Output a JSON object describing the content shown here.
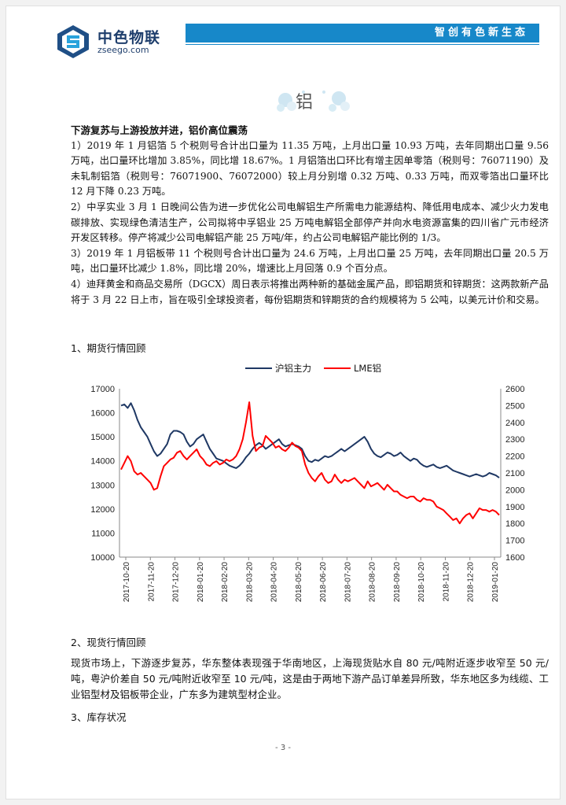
{
  "header": {
    "logo_cn": "中色物联",
    "logo_en": "zseego.com",
    "slogan": "智创有色新生态"
  },
  "section": {
    "title": "铝"
  },
  "headline": "下游复苏与上游投放并进，铝价高位震荡",
  "paragraphs": [
    "1）2019 年 1 月铝箔 5 个税则号合计出口量为 11.35 万吨，上月出口量 10.93 万吨，去年同期出口量 9.56 万吨，出口量环比增加 3.85%，同比增 18.67%。1 月铝箔出口环比有增主因单零箔（税则号：76071190）及未轧制铝箔（税则号：76071900、76072000）较上月分别增 0.32 万吨、0.33 万吨，而双零箔出口量环比 12 月下降 0.23 万吨。",
    "2）中孚实业 3 月 1 日晚间公告为进一步优化公司电解铝生产所需电力能源结构、降低用电成本、减少火力发电碳排放、实现绿色清洁生产，公司拟将中孚铝业 25 万吨电解铝全部停产并向水电资源富集的四川省广元市经济开发区转移。停产将减少公司电解铝产能 25 万吨/年，约占公司电解铝产能比例的 1/3。",
    "3）2019 年 1 月铝板带 11 个税则号合计出口量为 24.6 万吨，上月出口量 25 万吨，去年同期出口量 20.5 万吨，出口量环比减少 1.8%，同比增 20%，增速比上月回落 0.9 个百分点。",
    "4）迪拜黄金和商品交易所（DGCX）周日表示将推出两种新的基础金属产品，即铝期货和锌期货：这两款新产品将于 3 月 22 日上市，旨在吸引全球投资者，每份铝期货和锌期货的合约规模将为 5 公吨，以美元计价和交易。"
  ],
  "sections": {
    "futures": "1、期货行情回顾",
    "spot": "2、现货行情回顾",
    "inventory": "3、库存状况"
  },
  "spot_text": "现货市场上，下游逐步复苏，华东整体表现强于华南地区，上海现货贴水自 80 元/吨附近逐步收窄至 50 元/吨，粤沪价差自 50 元/吨附近收窄至 10 元/吨，这是由于两地下游产品订单差异所致，华东地区多为线缆、工业铝型材及铝板带企业，广东多为建筑型材企业。",
  "page_number": "- 3 -",
  "colors": {
    "banner": "#1788c9",
    "shfe": "#1f3864",
    "lme": "#ff0000"
  },
  "chart_data": {
    "type": "line",
    "series": [
      {
        "name": "沪铝主力",
        "axis": "left",
        "color": "#1f3864",
        "values": [
          16300,
          16350,
          16200,
          16400,
          16100,
          15700,
          15400,
          15200,
          15000,
          14700,
          14400,
          14200,
          14300,
          14500,
          14700,
          15100,
          15250,
          15250,
          15200,
          15100,
          14800,
          14600,
          14700,
          14900,
          15000,
          15100,
          14800,
          14500,
          14300,
          14100,
          14050,
          14000,
          13900,
          13800,
          13750,
          13700,
          13800,
          13950,
          14150,
          14300,
          14500,
          14650,
          14750,
          14650,
          14500,
          14600,
          14700,
          14800,
          14900,
          14700,
          14600,
          14650,
          14700,
          14650,
          14600,
          14500,
          14200,
          14000,
          13950,
          14050,
          14000,
          14100,
          14200,
          14150,
          14200,
          14300,
          14400,
          14500,
          14400,
          14500,
          14600,
          14700,
          14800,
          14900,
          15000,
          14800,
          14500,
          14300,
          14200,
          14150,
          14250,
          14350,
          14300,
          14200,
          14250,
          14350,
          14200,
          14100,
          14000,
          14100,
          14050,
          13900,
          13800,
          13750,
          13800,
          13850,
          13750,
          13700,
          13750,
          13800,
          13700,
          13600,
          13550,
          13500,
          13450,
          13400,
          13350,
          13400,
          13450,
          13400,
          13350,
          13400,
          13500,
          13450,
          13400,
          13300
        ]
      },
      {
        "name": "LME铝",
        "axis": "right",
        "color": "#ff0000",
        "values": [
          2120,
          2160,
          2200,
          2170,
          2110,
          2090,
          2100,
          2080,
          2060,
          2040,
          2000,
          2010,
          2080,
          2140,
          2160,
          2180,
          2190,
          2220,
          2230,
          2200,
          2180,
          2200,
          2220,
          2240,
          2200,
          2180,
          2150,
          2140,
          2160,
          2170,
          2150,
          2160,
          2180,
          2170,
          2180,
          2200,
          2240,
          2300,
          2400,
          2520,
          2320,
          2230,
          2250,
          2260,
          2320,
          2300,
          2280,
          2250,
          2260,
          2240,
          2230,
          2250,
          2280,
          2260,
          2250,
          2230,
          2150,
          2100,
          2070,
          2050,
          2080,
          2100,
          2060,
          2040,
          2050,
          2090,
          2060,
          2040,
          2060,
          2050,
          2060,
          2070,
          2050,
          2030,
          2010,
          2050,
          2020,
          2030,
          2040,
          2020,
          2000,
          2030,
          2010,
          1990,
          1990,
          1970,
          1960,
          1950,
          1960,
          1960,
          1940,
          1930,
          1950,
          1940,
          1940,
          1930,
          1900,
          1890,
          1880,
          1860,
          1840,
          1820,
          1830,
          1800,
          1830,
          1850,
          1860,
          1830,
          1860,
          1890,
          1880,
          1880,
          1870,
          1880,
          1870,
          1850
        ]
      }
    ],
    "x_ticks": [
      "2017-10-20",
      "2017-11-20",
      "2017-12-20",
      "2018-01-20",
      "2018-02-20",
      "2018-03-20",
      "2018-04-20",
      "2018-05-20",
      "2018-06-20",
      "2018-07-20",
      "2018-08-20",
      "2018-09-20",
      "2018-10-20",
      "2018-11-20",
      "2018-12-20",
      "2019-01-20"
    ],
    "left_ylim": [
      10000,
      17000
    ],
    "left_ticks": [
      10000,
      11000,
      12000,
      13000,
      14000,
      15000,
      16000,
      17000
    ],
    "right_ylim": [
      1600,
      2600
    ],
    "right_ticks": [
      1600,
      1700,
      1800,
      1900,
      2000,
      2100,
      2200,
      2300,
      2400,
      2500,
      2600
    ],
    "legend_position": "top",
    "grid": false
  }
}
